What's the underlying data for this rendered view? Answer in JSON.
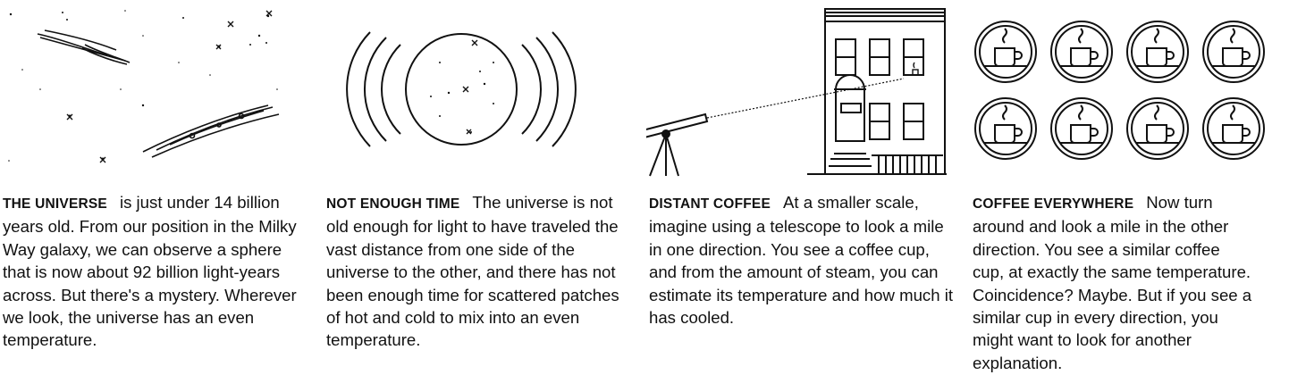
{
  "panels": [
    {
      "heading": "THE UNIVERSE",
      "body": "is just under 14 billion years old. From our position in the Milky Way galaxy, we can observe a sphere that is now about 92 billion light-years across. But there's a mystery. Wherever we look, the universe has an even temperature.",
      "illustration": "galaxies-and-stars"
    },
    {
      "heading": "NOT ENOUGH TIME",
      "body": "The universe is not old enough for light to have traveled the vast distance from one side of the universe to the other, and there has not been enough time for scattered patches of hot and cold to mix into an even temperature.",
      "illustration": "observable-universe-sphere"
    },
    {
      "heading": "DISTANT COFFEE",
      "body": "At a smaller scale, imagine using a telescope to look a mile in one direction. You see a coffee cup, and from the amount of steam, you can estimate its temperature and how much it has cooled.",
      "illustration": "telescope-and-building"
    },
    {
      "heading": "COFFEE EVERYWHERE",
      "body_lines": [
        "Now turn",
        "around and look a mile in the other",
        "direction. You see a similar coffee",
        "cup, at exactly the same temperature.",
        "Coincidence? Maybe. But if you see a",
        "similar cup in every direction, you",
        "might want to look for another",
        "explanation."
      ],
      "illustration": "coffee-cup-grid"
    }
  ],
  "colors": {
    "ink": "#111111",
    "background": "#ffffff"
  }
}
